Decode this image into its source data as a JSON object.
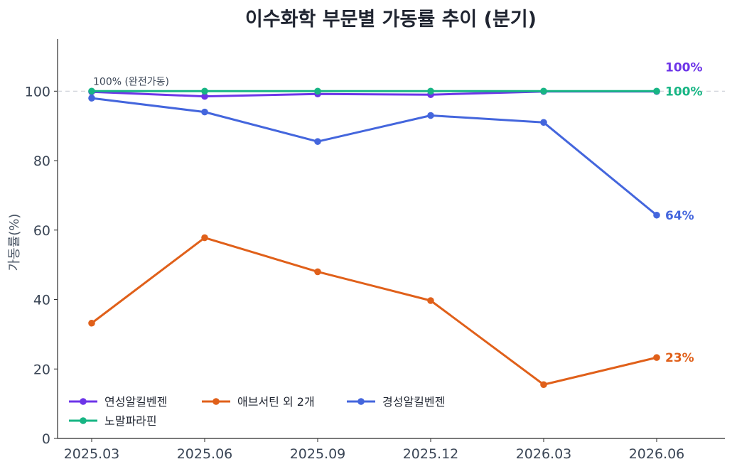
{
  "chart_data": {
    "type": "line",
    "title": "이수화학 부문별 가동률 추이 (분기)",
    "xlabel": "",
    "ylabel": "가동률(%)",
    "categories": [
      "2025.03",
      "2025.06",
      "2025.09",
      "2025.12",
      "2026.03",
      "2026.06"
    ],
    "ylim": [
      0,
      115
    ],
    "yticks": [
      0,
      20,
      40,
      60,
      80,
      100
    ],
    "grid": false,
    "reference_line": {
      "value": 100,
      "label": "100% (완전가동)"
    },
    "legend_position": "bottom-left",
    "series": [
      {
        "name": "연성알킬벤젠",
        "color": "#6d35e8",
        "values": [
          99.8,
          98.5,
          99.2,
          99.0,
          99.9,
          99.9
        ],
        "end_label": "100%"
      },
      {
        "name": "애브서틴 외 2개",
        "color": "#e0601a",
        "values": [
          33.2,
          57.8,
          48.0,
          39.7,
          15.5,
          23.3
        ],
        "end_label": "23%"
      },
      {
        "name": "경성알킬벤젠",
        "color": "#4466dd",
        "values": [
          98.0,
          94.0,
          85.5,
          93.0,
          91.0,
          64.3
        ],
        "end_label": "64%"
      },
      {
        "name": "노말파라핀",
        "color": "#17b584",
        "values": [
          100,
          100,
          100,
          100,
          100,
          100
        ],
        "end_label": "100%"
      }
    ]
  }
}
